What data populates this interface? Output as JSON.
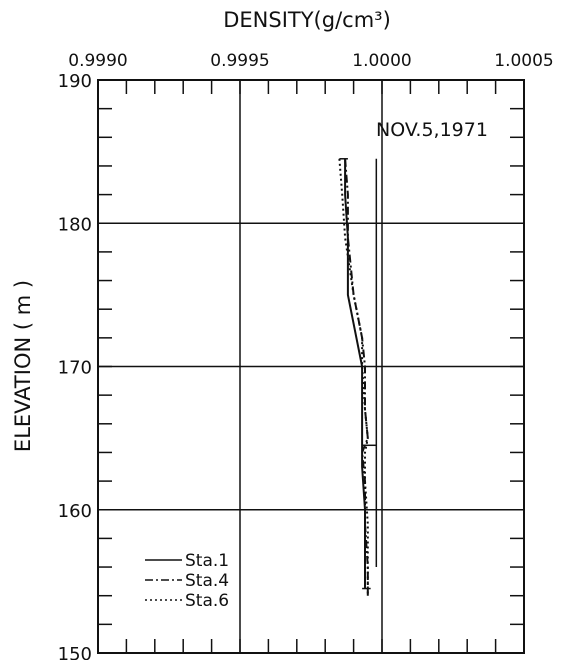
{
  "chart_data": {
    "type": "line",
    "title": "NOV.5,1971",
    "xlabel": "DENSITY(g/cm³)",
    "ylabel": "ELEVATION ( m )",
    "xlim": [
      0.999,
      1.0005
    ],
    "ylim": [
      150,
      190
    ],
    "xticks": [
      "0.9990",
      "0.9995",
      "1.0000",
      "1.0005"
    ],
    "xtick_values": [
      0.999,
      0.9995,
      1.0,
      1.0005
    ],
    "yticks": [
      "190",
      "180",
      "170",
      "160",
      "150"
    ],
    "ytick_values": [
      190,
      180,
      170,
      160,
      150
    ],
    "grid": true,
    "legend_position": "bottom-left",
    "series": [
      {
        "name": "Sta.1",
        "style": "solid",
        "x": [
          0.99987,
          0.99987,
          0.99988,
          0.99988,
          0.99991,
          0.99993,
          0.99993,
          0.99993,
          0.99993,
          0.99993,
          0.99994,
          0.99994,
          0.99994
        ],
        "y": [
          184.5,
          182.0,
          179.0,
          175.0,
          172.0,
          170.0,
          167.0,
          165.0,
          164.5,
          163.0,
          160.0,
          157.0,
          154.5
        ]
      },
      {
        "name": "Sta.4",
        "style": "dashdot",
        "x": [
          0.99987,
          0.99988,
          0.99988,
          0.9999,
          0.99993,
          0.99994,
          0.99994,
          0.99995,
          0.99993,
          0.99994,
          0.99994,
          0.99995,
          0.99995
        ],
        "y": [
          184.5,
          182.0,
          179.0,
          175.0,
          172.0,
          170.0,
          167.0,
          165.0,
          164.0,
          162.0,
          159.0,
          156.0,
          154.0
        ]
      },
      {
        "name": "Sta.6",
        "style": "dotted",
        "x": [
          0.99985,
          0.99986,
          0.99987,
          0.9999,
          0.99993,
          0.99993,
          0.99994,
          0.99995,
          0.99994,
          0.99994,
          0.99995,
          0.99995,
          0.99995
        ],
        "y": [
          184.5,
          182.0,
          179.0,
          175.0,
          172.0,
          170.0,
          167.0,
          165.0,
          164.0,
          162.0,
          159.0,
          156.0,
          154.0
        ]
      }
    ],
    "reference_lines": [
      {
        "x": [
          0.99985,
          0.99988
        ],
        "y": [
          184.5,
          184.5
        ]
      },
      {
        "x": [
          0.99998,
          0.99998
        ],
        "y": [
          184.5,
          156.0
        ]
      },
      {
        "x": [
          0.99993,
          0.99998
        ],
        "y": [
          164.5,
          164.5
        ]
      },
      {
        "x": [
          0.99993,
          0.99996
        ],
        "y": [
          154.5,
          154.5
        ]
      }
    ]
  }
}
